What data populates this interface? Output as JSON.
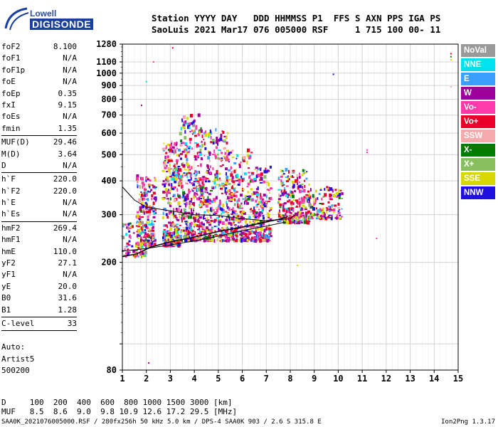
{
  "logo": {
    "line1": "Lowell",
    "line2": "DIGISONDE"
  },
  "header": {
    "row1": "Station YYYY DAY   DDD HHMMSS P1  FFS S AXN PPS IGA PS",
    "row2": "SaoLuis 2021 Mar17 076 005000 RSF     1 715 100 00- 11"
  },
  "params": {
    "group1": [
      {
        "k": "foF2",
        "v": "8.100"
      },
      {
        "k": "foF1",
        "v": "N/A"
      },
      {
        "k": "foF1p",
        "v": "N/A"
      },
      {
        "k": "foE",
        "v": "N/A"
      },
      {
        "k": "foEp",
        "v": "0.35"
      },
      {
        "k": "fxI",
        "v": "9.15"
      },
      {
        "k": "foEs",
        "v": "N/A"
      },
      {
        "k": "fmin",
        "v": "1.35"
      }
    ],
    "group2": [
      {
        "k": "MUF(D)",
        "v": "29.46"
      },
      {
        "k": "M(D)",
        "v": "3.64"
      },
      {
        "k": "D",
        "v": "N/A"
      }
    ],
    "group3": [
      {
        "k": "h`F",
        "v": "220.0"
      },
      {
        "k": "h`F2",
        "v": "220.0"
      },
      {
        "k": "h`E",
        "v": "N/A"
      },
      {
        "k": "h`Es",
        "v": "N/A"
      }
    ],
    "group4": [
      {
        "k": "hmF2",
        "v": "269.4"
      },
      {
        "k": "hmF1",
        "v": "N/A"
      },
      {
        "k": "hmE",
        "v": "110.0"
      },
      {
        "k": "yF2",
        "v": "27.1"
      },
      {
        "k": "yF1",
        "v": "N/A"
      },
      {
        "k": "yE",
        "v": "20.0"
      },
      {
        "k": "B0",
        "v": "31.6"
      },
      {
        "k": "B1",
        "v": "1.28"
      }
    ],
    "group5": [
      {
        "k": "C-level",
        "v": "33"
      }
    ]
  },
  "auto": {
    "line1": "Auto:",
    "line2": "Artist5",
    "line3": "500200"
  },
  "legend": [
    {
      "label": "NoVal",
      "color": "#999999"
    },
    {
      "label": "NNE",
      "color": "#00e0f0"
    },
    {
      "label": "E",
      "color": "#3aa0ff"
    },
    {
      "label": "W",
      "color": "#a0009a"
    },
    {
      "label": "Vo-",
      "color": "#ff3aa8"
    },
    {
      "label": "Vo+",
      "color": "#e8002a"
    },
    {
      "label": "SSW",
      "color": "#f4aaaa"
    },
    {
      "label": "X-",
      "color": "#007a00"
    },
    {
      "label": "X+",
      "color": "#88c060"
    },
    {
      "label": "SSE",
      "color": "#d8d800"
    },
    {
      "label": "NNW",
      "color": "#2010e0"
    }
  ],
  "footer": {
    "row1": "D     100  200  400  600  800 1000 1500 3000 [km]",
    "row2": "MUF   8.5  8.6  9.0  9.8 10.9 12.6 17.2 29.5 [MHz]",
    "row3": "SAA0K_2021076005000.RSF / 280fx256h 50 kHz 5.0 km / DPS-4 SAA0K 903 / 2.6 S 315.8 E",
    "row4": "Ion2Png 1.3.17"
  },
  "chart_data": {
    "type": "scatter",
    "xlim": [
      1,
      15
    ],
    "ylim": [
      80,
      1280
    ],
    "y_scale": "log",
    "x_ticks": [
      "1",
      "2",
      "3",
      "4",
      "5",
      "6",
      "7",
      "8",
      "9",
      "10",
      "11",
      "12",
      "13",
      "14",
      "15"
    ],
    "y_ticks": [
      {
        "v": 80,
        "label": "80"
      },
      {
        "v": 100,
        "label": ""
      },
      {
        "v": 200,
        "label": "200"
      },
      {
        "v": 300,
        "label": "300"
      },
      {
        "v": 400,
        "label": "400"
      },
      {
        "v": 500,
        "label": "500"
      },
      {
        "v": 600,
        "label": "600"
      },
      {
        "v": 700,
        "label": "700"
      },
      {
        "v": 800,
        "label": "800"
      },
      {
        "v": 900,
        "label": "900"
      },
      {
        "v": 1000,
        "label": "1000"
      },
      {
        "v": 1100,
        "label": "1100"
      },
      {
        "v": 1280,
        "label": "1280"
      }
    ],
    "grid": true,
    "trace_profile": {
      "x": [
        1.0,
        1.6,
        2.2,
        3.0,
        4.0,
        5.0,
        6.0,
        7.0,
        7.5,
        7.9
      ],
      "y": [
        210,
        215,
        228,
        238,
        248,
        260,
        270,
        282,
        288,
        295
      ]
    },
    "trace_upper": {
      "x": [
        1.0,
        1.5,
        2.0,
        3.0,
        4.0,
        5.0,
        6.0,
        7.0,
        8.0,
        8.2
      ],
      "y": [
        380,
        340,
        320,
        310,
        300,
        298,
        290,
        285,
        290,
        300
      ]
    },
    "trace_lower": {
      "x": [
        1.0,
        2.0,
        3.0,
        4.0,
        5.0,
        6.0,
        7.0,
        7.8
      ],
      "y": [
        220,
        225,
        232,
        240,
        250,
        262,
        272,
        282
      ]
    },
    "echo_clusters": [
      {
        "x": [
          1.6,
          2.4
        ],
        "y": [
          230,
          420
        ],
        "n": 220
      },
      {
        "x": [
          2.7,
          3.4
        ],
        "y": [
          230,
          560
        ],
        "n": 320
      },
      {
        "x": [
          3.4,
          4.3
        ],
        "y": [
          240,
          700
        ],
        "n": 360
      },
      {
        "x": [
          4.3,
          5.4
        ],
        "y": [
          240,
          620
        ],
        "n": 340
      },
      {
        "x": [
          5.4,
          6.4
        ],
        "y": [
          240,
          520
        ],
        "n": 280
      },
      {
        "x": [
          6.4,
          7.2
        ],
        "y": [
          240,
          450
        ],
        "n": 220
      },
      {
        "x": [
          7.5,
          8.8
        ],
        "y": [
          280,
          440
        ],
        "n": 260
      },
      {
        "x": [
          8.8,
          10.2
        ],
        "y": [
          290,
          380
        ],
        "n": 140
      },
      {
        "x": [
          1.0,
          2.0
        ],
        "y": [
          210,
          280
        ],
        "n": 80
      }
    ],
    "isolated_points": [
      {
        "x": 14.7,
        "y": 1180
      },
      {
        "x": 14.7,
        "y": 1150
      },
      {
        "x": 14.7,
        "y": 1120
      },
      {
        "x": 14.7,
        "y": 890
      },
      {
        "x": 2.3,
        "y": 1100
      },
      {
        "x": 2.0,
        "y": 930
      },
      {
        "x": 9.8,
        "y": 990
      },
      {
        "x": 1.8,
        "y": 760
      },
      {
        "x": 11.2,
        "y": 510
      },
      {
        "x": 11.2,
        "y": 520
      },
      {
        "x": 11.6,
        "y": 245
      },
      {
        "x": 2.1,
        "y": 85
      },
      {
        "x": 3.1,
        "y": 1240
      },
      {
        "x": 8.3,
        "y": 195
      }
    ]
  }
}
